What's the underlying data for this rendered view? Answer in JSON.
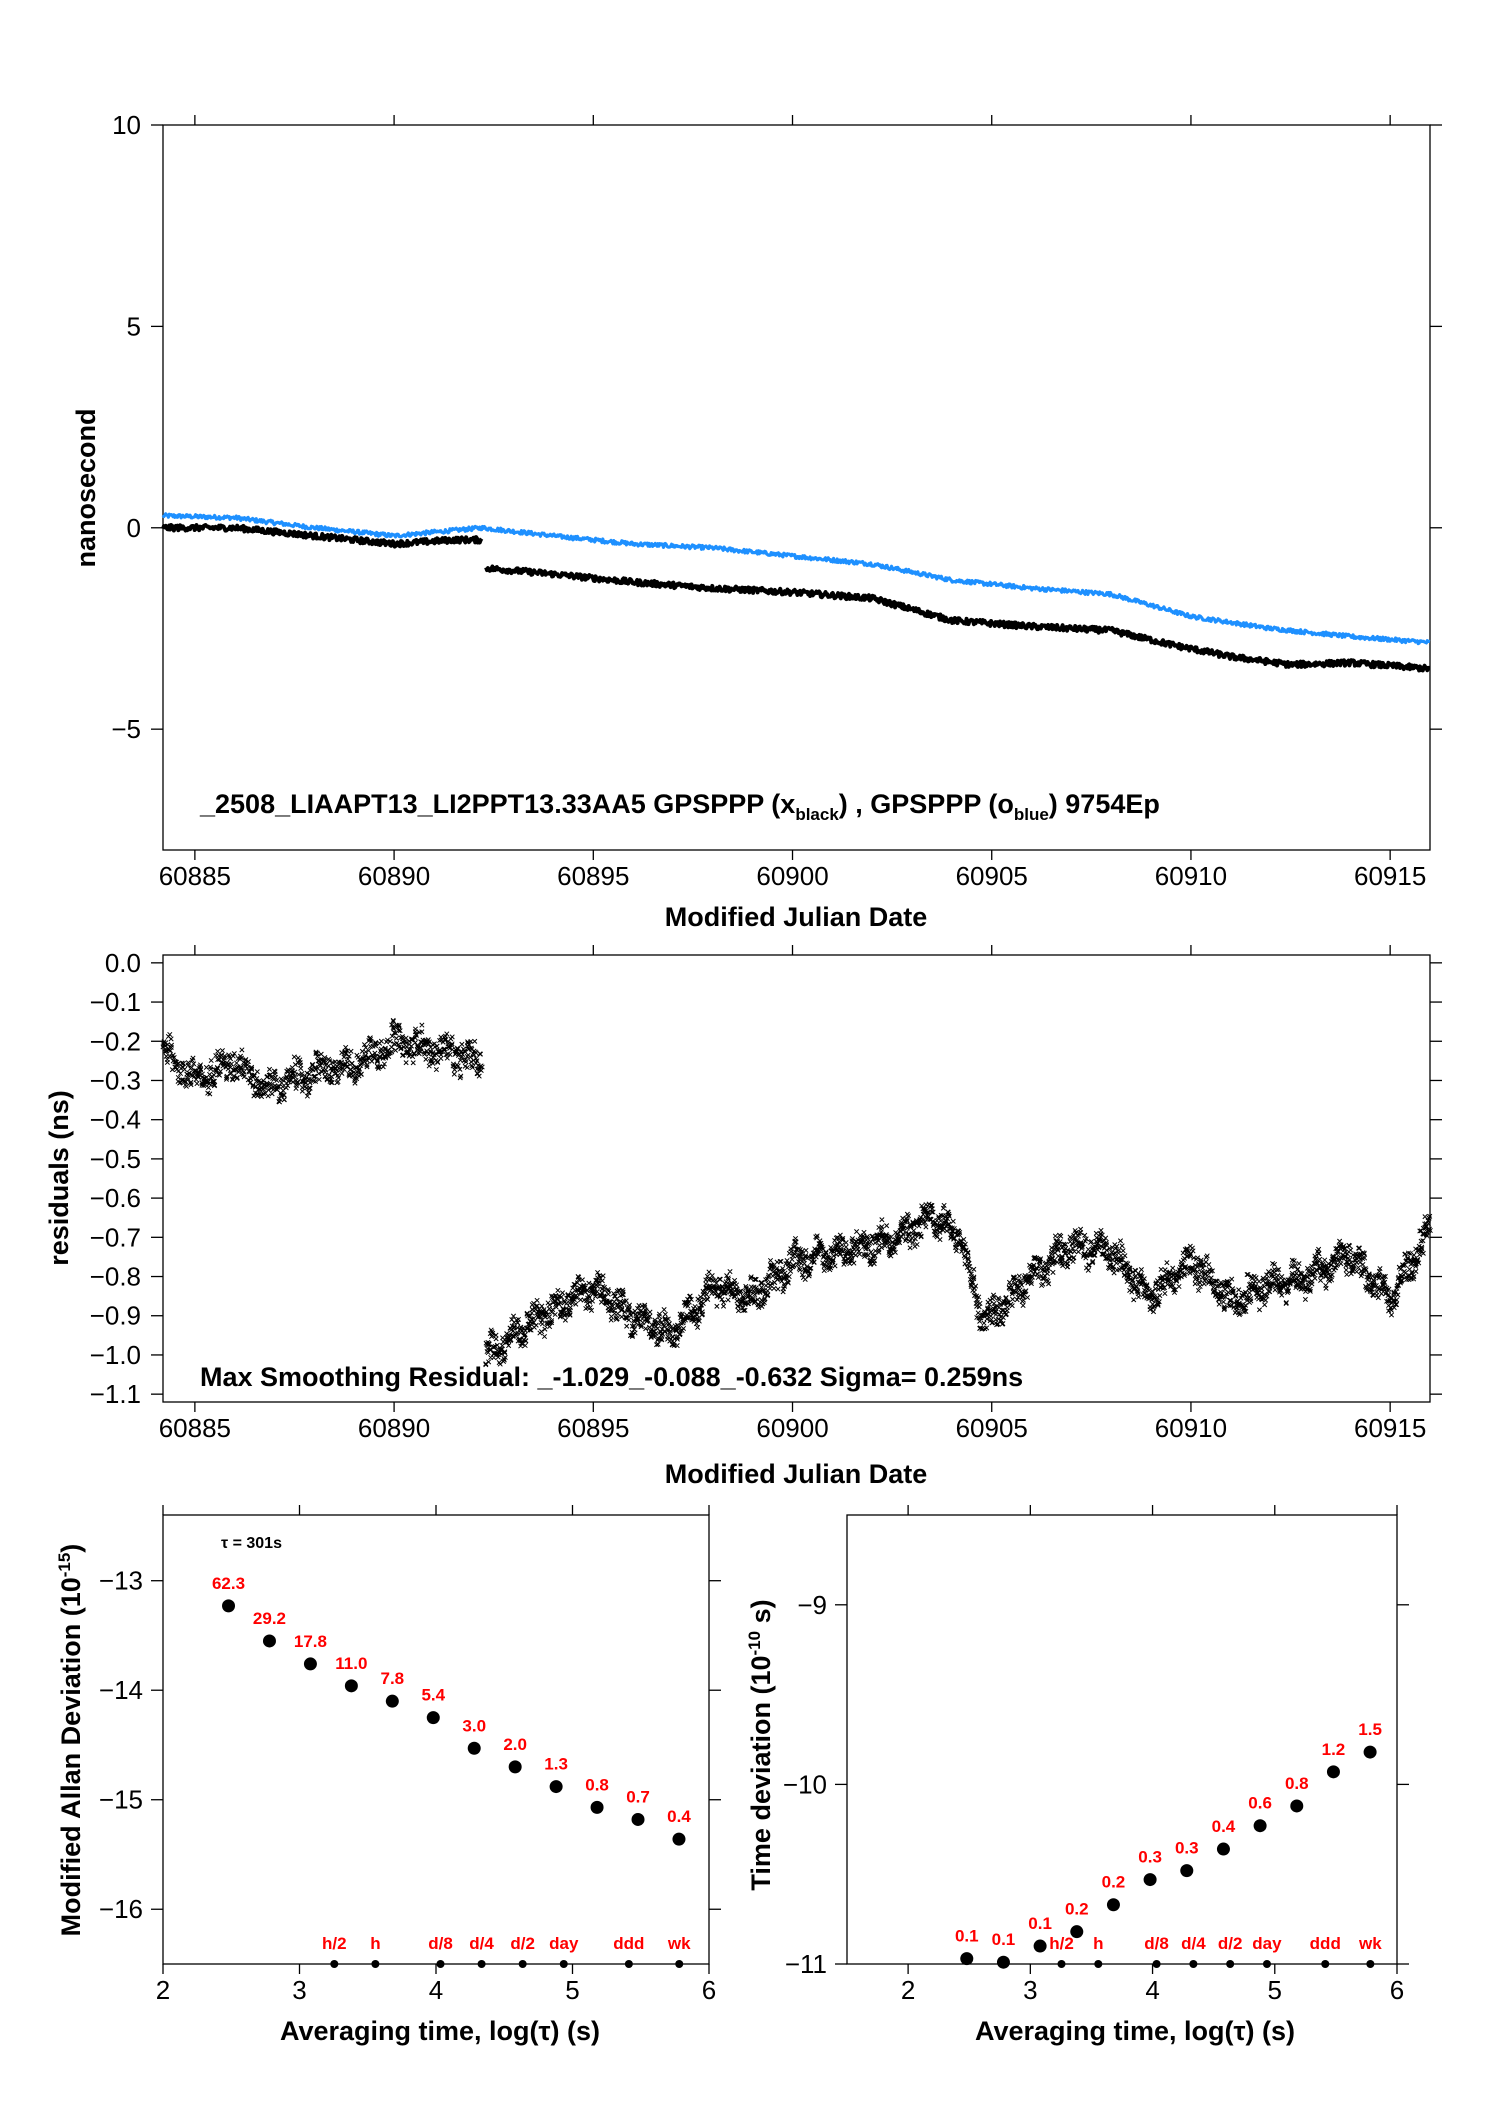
{
  "chart_data": [
    {
      "id": "phase",
      "type": "line",
      "xlabel": "Modified Julian Date",
      "ylabel": "nanosecond",
      "xlim": [
        60884.2,
        60916
      ],
      "ylim": [
        -8,
        10
      ],
      "xticks": [
        "60885",
        "60890",
        "60895",
        "60900",
        "60905",
        "60910",
        "60915"
      ],
      "yticks": [
        "10",
        "5",
        "0",
        "−5"
      ],
      "annotation": {
        "prefix": "_2508_LIAAPT13_LI2PPT13.33AA5     GPSPPP (x",
        "sub1": "black",
        "mid": ") ,  GPSPPP (o",
        "sub2": "blue",
        "suffix": ")  9754Ep"
      },
      "series": [
        {
          "marker": "x",
          "color": "#000000",
          "x": [
            60884.2,
            60886,
            60888,
            60890,
            60891.5,
            60892.2,
            60892.3,
            60894,
            60896,
            60898,
            60900,
            60902,
            60904,
            60906,
            60908,
            60909.5,
            60911,
            60912.5,
            60914,
            60916
          ],
          "y": [
            0.0,
            0.0,
            -0.2,
            -0.4,
            -0.3,
            -0.3,
            -1.0,
            -1.15,
            -1.35,
            -1.5,
            -1.6,
            -1.75,
            -2.3,
            -2.45,
            -2.55,
            -2.9,
            -3.2,
            -3.4,
            -3.35,
            -3.5
          ]
        },
        {
          "marker": "o",
          "color": "#1e90ff",
          "x": [
            60884.2,
            60886,
            60888,
            60890,
            60892.2,
            60894,
            60896,
            60898,
            60900,
            60902,
            60904,
            60906,
            60908,
            60910,
            60912,
            60914,
            60916
          ],
          "y": [
            0.3,
            0.25,
            0.0,
            -0.2,
            0.0,
            -0.2,
            -0.4,
            -0.5,
            -0.7,
            -0.9,
            -1.3,
            -1.5,
            -1.65,
            -2.2,
            -2.5,
            -2.7,
            -2.85
          ]
        }
      ]
    },
    {
      "id": "residuals",
      "type": "scatter",
      "xlabel": "Modified Julian Date",
      "ylabel": "residuals (ns)",
      "xlim": [
        60884.2,
        60916
      ],
      "ylim": [
        -1.12,
        0.02
      ],
      "xticks": [
        "60885",
        "60890",
        "60895",
        "60900",
        "60905",
        "60910",
        "60915"
      ],
      "yticks": [
        "0.0",
        "−0.1",
        "−0.2",
        "−0.3",
        "−0.4",
        "−0.5",
        "−0.6",
        "−0.7",
        "−0.8",
        "−0.9",
        "−1.0",
        "−1.1"
      ],
      "annotation": "Max Smoothing Residual: _-1.029_-0.088_-0.632  Sigma= 0.259ns",
      "series": [
        {
          "marker": "x",
          "color": "#000000",
          "x": [
            60884.2,
            60885,
            60886,
            60886.8,
            60888,
            60889,
            60890,
            60891,
            60892.2,
            60892.3,
            60893,
            60894,
            60895,
            60896,
            60897,
            60898,
            60899,
            60900,
            60901,
            60902,
            60903,
            60903.5,
            60904.2,
            60904.8,
            60905.5,
            60906,
            60907,
            60908,
            60909,
            60910,
            60911,
            60912,
            60913,
            60914,
            60915,
            60916
          ],
          "y": [
            -0.22,
            -0.3,
            -0.25,
            -0.32,
            -0.28,
            -0.26,
            -0.2,
            -0.22,
            -0.25,
            -1.0,
            -0.95,
            -0.88,
            -0.83,
            -0.9,
            -0.95,
            -0.82,
            -0.86,
            -0.76,
            -0.74,
            -0.72,
            -0.68,
            -0.64,
            -0.7,
            -0.92,
            -0.85,
            -0.8,
            -0.72,
            -0.74,
            -0.85,
            -0.76,
            -0.86,
            -0.82,
            -0.8,
            -0.74,
            -0.86,
            -0.68
          ]
        }
      ]
    },
    {
      "id": "mdev",
      "type": "scatter",
      "xlabel": "Averaging time, log(τ) (s)",
      "ylabel": "Modified Allan Deviation (10",
      "ylabel_sup": "-15",
      "ylabel_end": ")",
      "xlim": [
        2,
        6
      ],
      "ylim": [
        -16.5,
        -12.4
      ],
      "xticks": [
        "2",
        "3",
        "4",
        "5",
        "6"
      ],
      "yticks": [
        "−13",
        "−14",
        "−15",
        "−16"
      ],
      "tau_note": "τ = 301s",
      "x": [
        2.48,
        2.78,
        3.08,
        3.38,
        3.68,
        3.98,
        4.28,
        4.58,
        4.88,
        5.18,
        5.48,
        5.78
      ],
      "y": [
        -13.23,
        -13.55,
        -13.76,
        -13.96,
        -14.1,
        -14.25,
        -14.53,
        -14.7,
        -14.88,
        -15.07,
        -15.18,
        -15.36
      ],
      "labels": [
        "62.3",
        "29.2",
        "17.8",
        "11.0",
        "7.8",
        "5.4",
        "3.0",
        "2.0",
        "1.3",
        "0.8",
        "0.7",
        "0.4"
      ],
      "time_marks": [
        {
          "label": "h/2",
          "x": 3.255
        },
        {
          "label": "h",
          "x": 3.556
        },
        {
          "label": "d/8",
          "x": 4.033
        },
        {
          "label": "d/4",
          "x": 4.334
        },
        {
          "label": "d/2",
          "x": 4.635
        },
        {
          "label": "day",
          "x": 4.936
        },
        {
          "label": "ddd",
          "x": 5.413
        },
        {
          "label": "wk",
          "x": 5.782
        }
      ]
    },
    {
      "id": "tdev",
      "type": "scatter",
      "xlabel": "Averaging time, log(τ) (s)",
      "ylabel": "Time deviation (10",
      "ylabel_sup": "-10",
      "ylabel_end": " s)",
      "xlim": [
        1.5,
        6
      ],
      "ylim": [
        -11,
        -8.5
      ],
      "xticks": [
        "2",
        "3",
        "4",
        "5",
        "6"
      ],
      "yticks": [
        "−9",
        "−10",
        "−11"
      ],
      "x": [
        2.48,
        2.78,
        3.08,
        3.38,
        3.68,
        3.98,
        4.28,
        4.58,
        4.88,
        5.18,
        5.48,
        5.78
      ],
      "y": [
        -10.97,
        -10.99,
        -10.9,
        -10.82,
        -10.67,
        -10.53,
        -10.48,
        -10.36,
        -10.23,
        -10.12,
        -9.93,
        -9.82
      ],
      "labels": [
        "0.1",
        "0.1",
        "0.1",
        "0.2",
        "0.2",
        "0.3",
        "0.3",
        "0.4",
        "0.6",
        "0.8",
        "1.2",
        "1.5"
      ],
      "time_marks": [
        {
          "label": "h/2",
          "x": 3.255
        },
        {
          "label": "h",
          "x": 3.556
        },
        {
          "label": "d/8",
          "x": 4.033
        },
        {
          "label": "d/4",
          "x": 4.334
        },
        {
          "label": "d/2",
          "x": 4.635
        },
        {
          "label": "day",
          "x": 4.936
        },
        {
          "label": "ddd",
          "x": 5.413
        },
        {
          "label": "wk",
          "x": 5.782
        }
      ]
    }
  ]
}
